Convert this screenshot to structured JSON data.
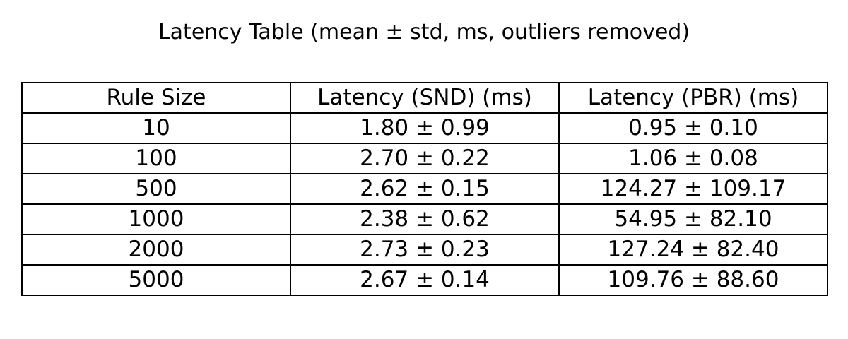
{
  "chart_data": {
    "type": "table",
    "title": "Latency Table (mean ± std, ms, outliers removed)",
    "columns": [
      "Rule Size",
      "Latency (SND) (ms)",
      "Latency (PBR) (ms)"
    ],
    "rows": [
      [
        "10",
        "1.80 ± 0.99",
        "0.95 ± 0.10"
      ],
      [
        "100",
        "2.70 ± 0.22",
        "1.06 ± 0.08"
      ],
      [
        "500",
        "2.62 ± 0.15",
        "124.27 ± 109.17"
      ],
      [
        "1000",
        "2.38 ± 0.62",
        "54.95 ± 82.10"
      ],
      [
        "2000",
        "2.73 ± 0.23",
        "127.24 ± 82.40"
      ],
      [
        "5000",
        "2.67 ± 0.14",
        "109.76 ± 88.60"
      ]
    ]
  }
}
